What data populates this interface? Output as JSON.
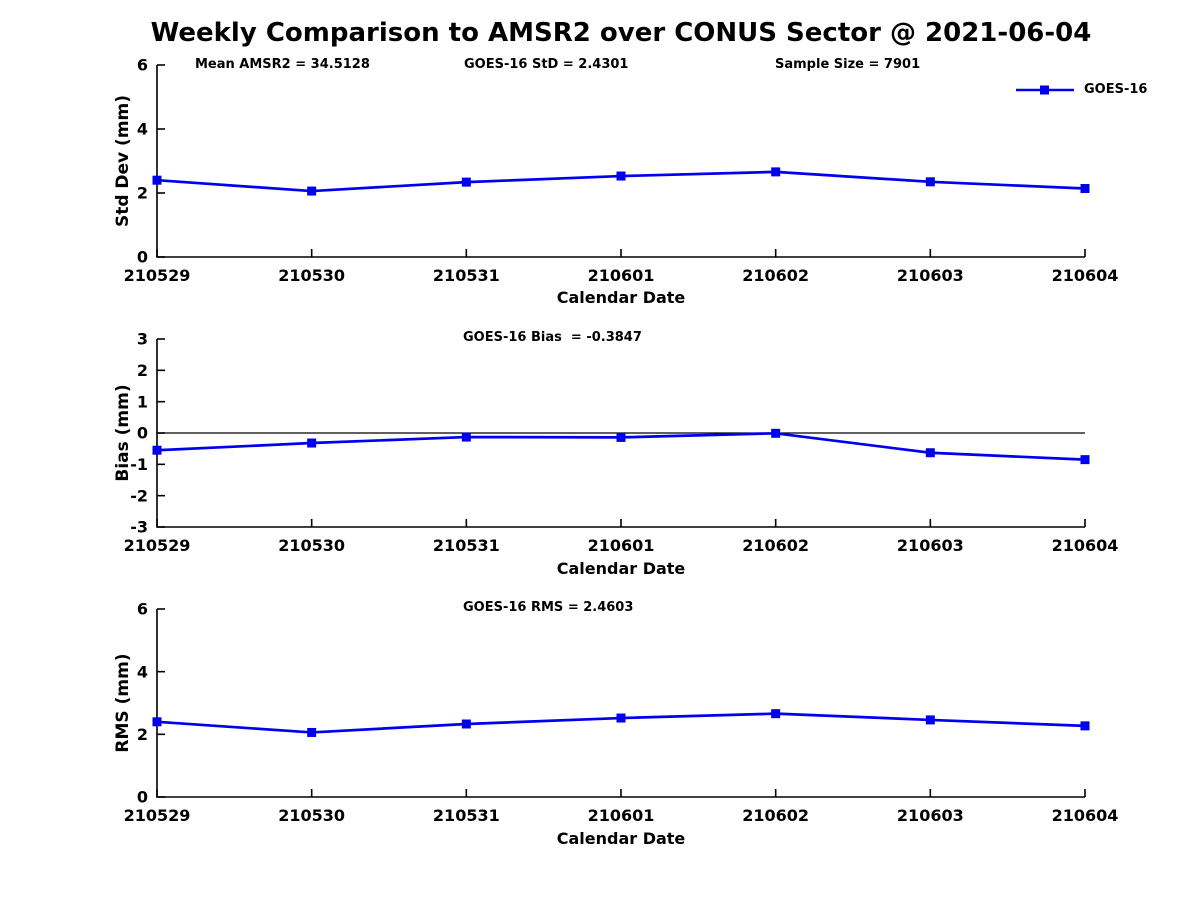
{
  "title": "Weekly Comparison to AMSR2 over CONUS Sector @ 2021-06-04",
  "legend": {
    "label": "GOES-16",
    "color": "#0000ee"
  },
  "chart_data": [
    {
      "type": "line",
      "name": "std-dev",
      "ylabel": "Std Dev (mm)",
      "xlabel": "Calendar Date",
      "ylim": [
        0,
        6
      ],
      "yticks": [
        0,
        2,
        4,
        6
      ],
      "grid": false,
      "legend_position": "top-right",
      "categories": [
        "210529",
        "210530",
        "210531",
        "210601",
        "210602",
        "210603",
        "210604"
      ],
      "series": [
        {
          "name": "GOES-16",
          "color": "#0000ee",
          "values": [
            2.4,
            2.06,
            2.34,
            2.53,
            2.66,
            2.35,
            2.14
          ]
        }
      ],
      "annotations": [
        {
          "text": "Mean AMSR2 = 34.5128"
        },
        {
          "text": "GOES-16 StD = 2.4301"
        },
        {
          "text": "Sample Size = 7901"
        }
      ]
    },
    {
      "type": "line",
      "name": "bias",
      "ylabel": "Bias (mm)",
      "xlabel": "Calendar Date",
      "ylim": [
        -3,
        3
      ],
      "yticks": [
        3,
        2,
        1,
        0,
        -1,
        -2,
        -3
      ],
      "zero_line": true,
      "grid": false,
      "categories": [
        "210529",
        "210530",
        "210531",
        "210601",
        "210602",
        "210603",
        "210604"
      ],
      "series": [
        {
          "name": "GOES-16",
          "color": "#0000ee",
          "values": [
            -0.55,
            -0.32,
            -0.13,
            -0.14,
            -0.01,
            -0.63,
            -0.85
          ]
        }
      ],
      "annotations": [
        {
          "text": "GOES-16 Bias  = -0.3847"
        }
      ]
    },
    {
      "type": "line",
      "name": "rms",
      "ylabel": "RMS (mm)",
      "xlabel": "Calendar Date",
      "ylim": [
        0,
        6
      ],
      "yticks": [
        0,
        2,
        4,
        6
      ],
      "grid": false,
      "categories": [
        "210529",
        "210530",
        "210531",
        "210601",
        "210602",
        "210603",
        "210604"
      ],
      "series": [
        {
          "name": "GOES-16",
          "color": "#0000ee",
          "values": [
            2.4,
            2.06,
            2.33,
            2.52,
            2.66,
            2.46,
            2.27
          ]
        }
      ],
      "annotations": [
        {
          "text": "GOES-16 RMS = 2.4603"
        }
      ]
    }
  ]
}
